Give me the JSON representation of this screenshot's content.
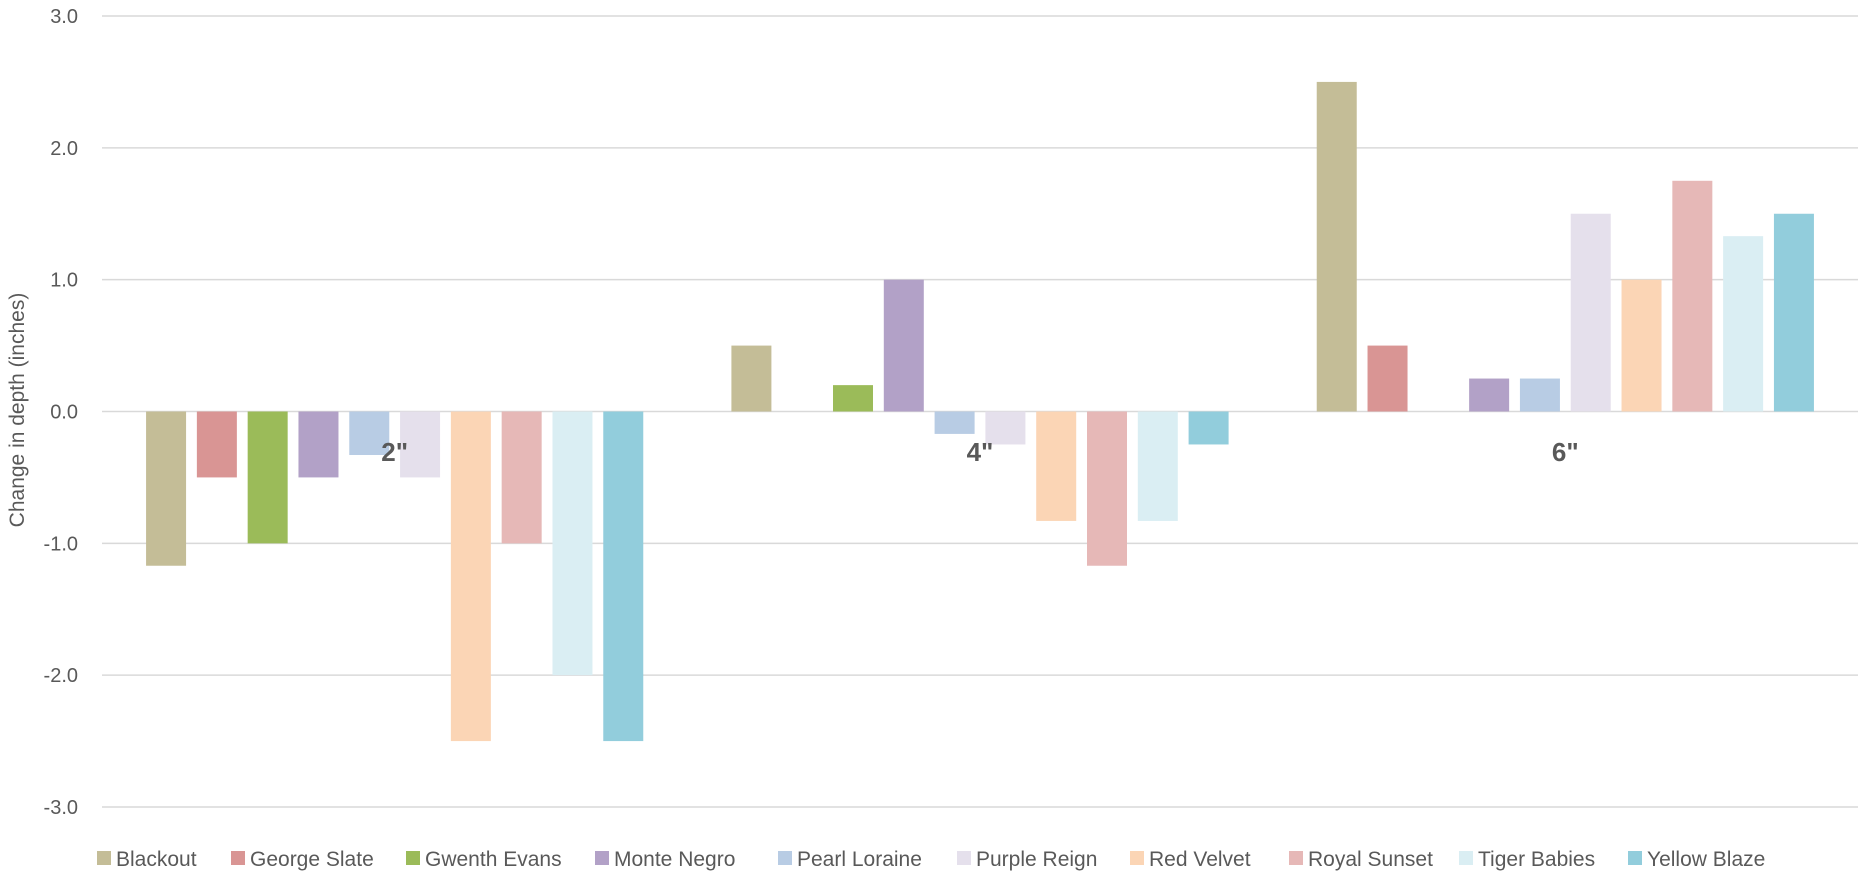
{
  "chart_data": {
    "type": "bar",
    "title": "",
    "xlabel": "",
    "ylabel": "Change in depth (inches)",
    "ylim": [
      -3.0,
      3.0
    ],
    "yticks": [
      "3.0",
      "2.0",
      "1.0",
      "0.0",
      "-1.0",
      "-2.0",
      "-3.0"
    ],
    "grid": true,
    "legend_position": "bottom",
    "categories": [
      "2\"",
      "4\"",
      "6\""
    ],
    "series": [
      {
        "name": "Blackout",
        "color": "#c4bd97",
        "values": [
          -1.17,
          0.5,
          2.5
        ]
      },
      {
        "name": "George Slate",
        "color": "#d99594",
        "values": [
          -0.5,
          0,
          0.5
        ]
      },
      {
        "name": "Gwenth Evans",
        "color": "#9bbb59",
        "values": [
          -1.0,
          0.2,
          0
        ]
      },
      {
        "name": "Monte Negro",
        "color": "#b2a1c7",
        "values": [
          -0.5,
          1.0,
          0.25
        ]
      },
      {
        "name": "Pearl Loraine",
        "color": "#b8cce4",
        "values": [
          -0.33,
          -0.17,
          0.25
        ]
      },
      {
        "name": "Purple Reign",
        "color": "#e5e0ec",
        "values": [
          -0.5,
          -0.25,
          1.5
        ]
      },
      {
        "name": "Red Velvet",
        "color": "#fbd5b5",
        "values": [
          -2.5,
          -0.83,
          1.0
        ]
      },
      {
        "name": "Royal Sunset",
        "color": "#e6b8b7",
        "values": [
          -1.0,
          -1.17,
          1.75
        ]
      },
      {
        "name": "Tiger Babies",
        "color": "#daeef3",
        "values": [
          -2.0,
          -0.83,
          1.33
        ]
      },
      {
        "name": "Yellow Blaze",
        "color": "#92cddc",
        "values": [
          -2.5,
          -0.25,
          1.5
        ]
      }
    ]
  }
}
